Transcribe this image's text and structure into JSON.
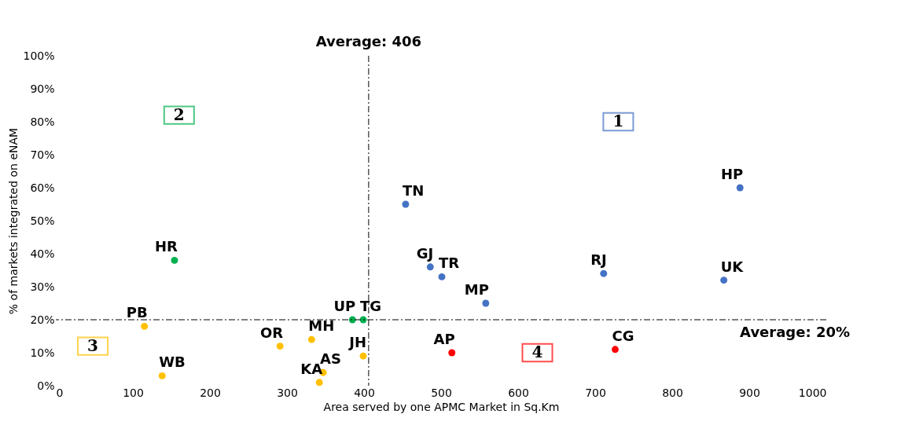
{
  "chart_data": {
    "type": "scatter",
    "xlabel": "Area served by one APMC Market in Sq.Km",
    "ylabel": "% of markets integrated on eNAM",
    "xlim": [
      0,
      1000
    ],
    "xticks": [
      0,
      100,
      200,
      300,
      400,
      500,
      600,
      700,
      800,
      900,
      {
        "value": 1000,
        "label": "1000"
      }
    ],
    "ylim": [
      0,
      100
    ],
    "yticks": [
      {
        "value": 0,
        "label": "0%"
      },
      {
        "value": 10,
        "label": "10%"
      },
      {
        "value": 20,
        "label": "20%"
      },
      {
        "value": 30,
        "label": "30%"
      },
      {
        "value": 40,
        "label": "40%"
      },
      {
        "value": 50,
        "label": "50%"
      },
      {
        "value": 60,
        "label": "60%"
      },
      {
        "value": 70,
        "label": "70%"
      },
      {
        "value": 80,
        "label": "80%"
      },
      {
        "value": 90,
        "label": "90%"
      },
      {
        "value": 100,
        "label": "100%"
      }
    ],
    "grid": false,
    "legend": false,
    "marker": "circle",
    "series": [
      {
        "color": "#4472c4",
        "x": [
          888,
          867,
          711,
          454,
          486,
          501,
          558
        ],
        "values": [
          60,
          32,
          34,
          55,
          36,
          33,
          25
        ],
        "value_labels": [
          "HP",
          "UK",
          "RJ",
          "TN",
          "GJ",
          "TR",
          "MP"
        ]
      },
      {
        "color": "#00b050",
        "x": [
          385,
          399,
          154
        ],
        "values": [
          20,
          20,
          38
        ],
        "value_labels": [
          "UP",
          "TG",
          "HR"
        ]
      },
      {
        "color": "#ffc000",
        "x": [
          115,
          138,
          291,
          332,
          399,
          347,
          342
        ],
        "values": [
          18,
          3,
          12,
          14,
          9,
          4,
          1
        ],
        "value_labels": [
          "PB",
          "WB",
          "OR",
          "MH",
          "JH",
          "AS",
          "KA"
        ]
      },
      {
        "color": "#ff0000",
        "x": [
          514,
          726
        ],
        "values": [
          10,
          11
        ],
        "value_labels": [
          "AP",
          "CG"
        ]
      }
    ],
    "ref_lines": [
      {
        "axis": "x",
        "value": 406,
        "label": "Average: 406",
        "line_style": "dashdot"
      },
      {
        "axis": "y",
        "value": 20,
        "label": "Average: 20%",
        "line_style": "dashdot"
      }
    ],
    "annotations": [
      {
        "text": "1",
        "x": 730,
        "y": 80
      },
      {
        "text": "2",
        "x": 160,
        "y": 82
      },
      {
        "text": "3",
        "x": 48,
        "y": 12
      },
      {
        "text": "4",
        "x": 625,
        "y": 10
      }
    ]
  }
}
